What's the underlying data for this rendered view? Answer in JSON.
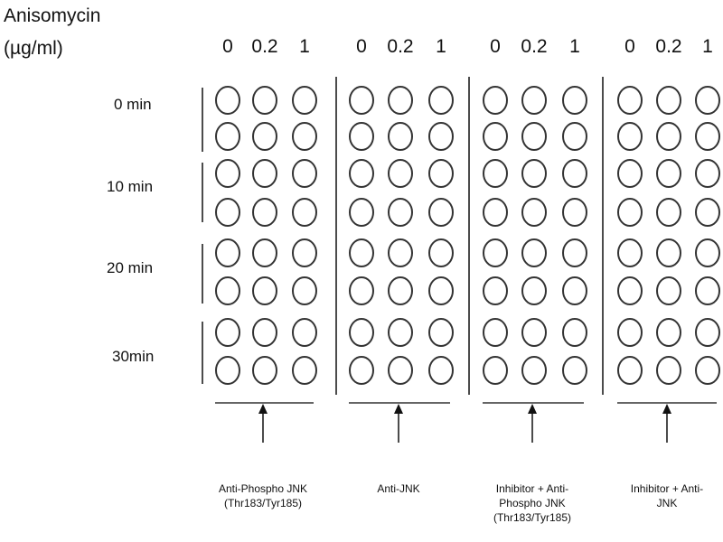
{
  "axis_title": {
    "line1": "Anisomycin",
    "line2": "(µg/ml)"
  },
  "concentrations": [
    "0",
    "0.2",
    "1"
  ],
  "time_points": [
    "0 min",
    "10 min",
    "20 min",
    "30min"
  ],
  "groups": [
    {
      "label": "Anti-Phospho JNK (Thr183/Tyr185)"
    },
    {
      "label": "Anti-JNK"
    },
    {
      "label": "Inhibitor + Anti-Phospho JNK (Thr183/Tyr185)"
    },
    {
      "label": "Inhibitor + Anti-JNK"
    }
  ],
  "colors": {
    "stroke": "#333333",
    "text": "#111111"
  }
}
